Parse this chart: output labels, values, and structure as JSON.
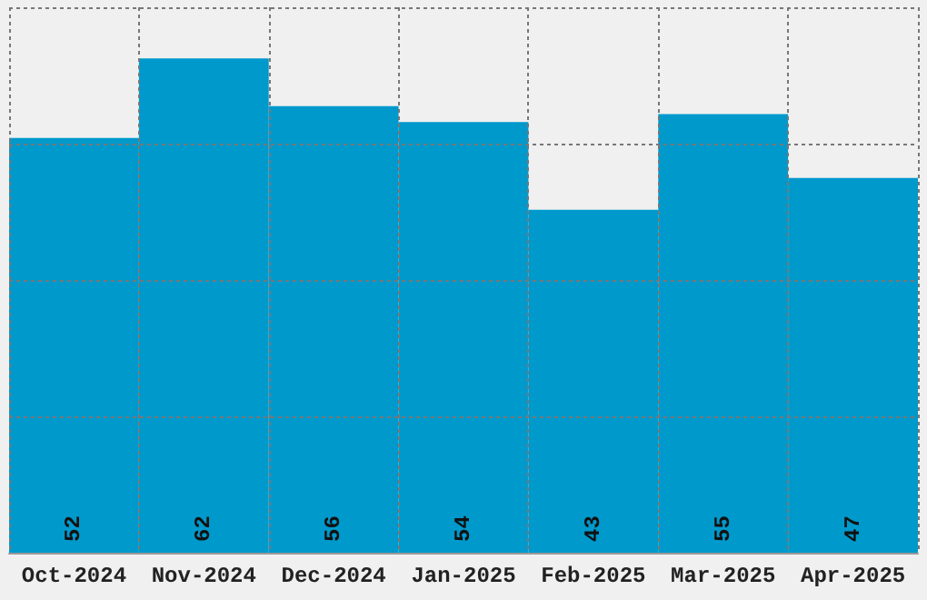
{
  "chart_data": {
    "type": "bar",
    "categories": [
      "Oct-2024",
      "Nov-2024",
      "Dec-2024",
      "Jan-2025",
      "Feb-2025",
      "Mar-2025",
      "Apr-2025"
    ],
    "values": [
      52,
      62,
      56,
      54,
      43,
      55,
      47
    ],
    "color": "#0099cc",
    "data_labels": true,
    "ylim": [
      0,
      68.4
    ],
    "grid": true
  }
}
